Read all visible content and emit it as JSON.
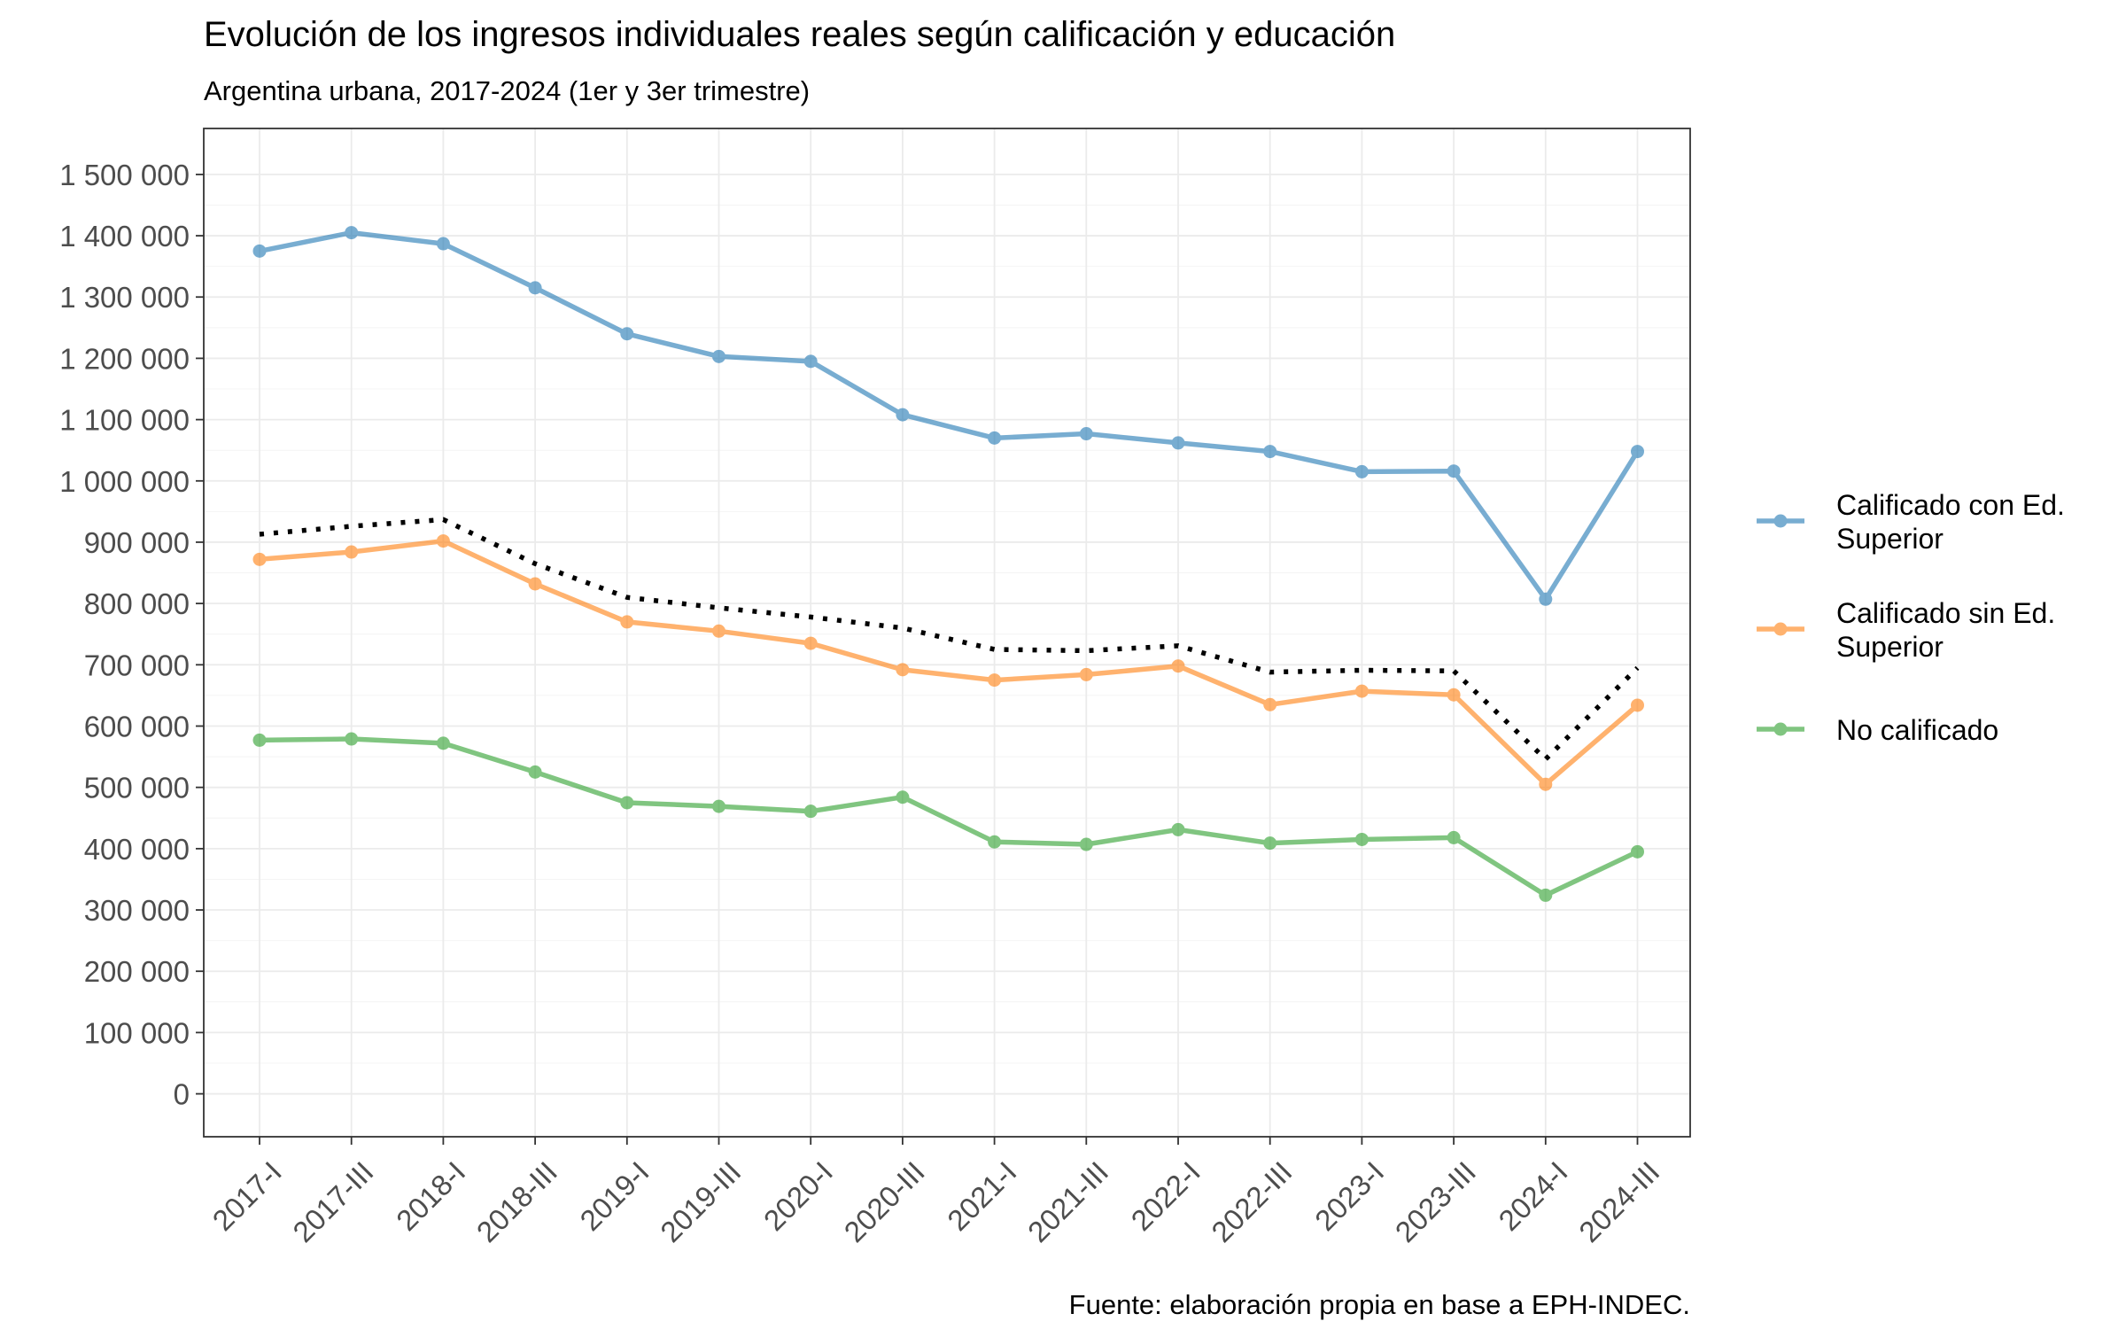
{
  "chart_data": {
    "type": "line",
    "title": "Evolución de los ingresos individuales reales según calificación y educación",
    "subtitle": "Argentina urbana, 2017-2024 (1er y 3er trimestre)",
    "caption": "Fuente: elaboración propia en base a EPH-INDEC.",
    "xlabel": "",
    "ylabel": "",
    "categories": [
      "2017-I",
      "2017-III",
      "2018-I",
      "2018-III",
      "2019-I",
      "2019-III",
      "2020-I",
      "2020-III",
      "2021-I",
      "2021-III",
      "2022-I",
      "2022-III",
      "2023-I",
      "2023-III",
      "2024-I",
      "2024-III"
    ],
    "y_ticks": [
      0,
      100000,
      200000,
      300000,
      400000,
      500000,
      600000,
      700000,
      800000,
      900000,
      1000000,
      1100000,
      1200000,
      1300000,
      1400000,
      1500000
    ],
    "y_tick_labels": [
      "0",
      "100 000",
      "200 000",
      "300 000",
      "400 000",
      "500 000",
      "600 000",
      "700 000",
      "800 000",
      "900 000",
      "1 000 000",
      "1 100 000",
      "1 200 000",
      "1 300 000",
      "1 400 000",
      "1 500 000"
    ],
    "ylim": [
      -70000,
      1575000
    ],
    "grid": true,
    "legend_position": "right",
    "series": [
      {
        "name": "Calificado con Ed. Superior",
        "legend_lines": [
          "Calificado con Ed.",
          "Superior"
        ],
        "color": "#1f77b4",
        "values": [
          1375000,
          1405000,
          1387000,
          1315000,
          1240000,
          1203000,
          1195000,
          1108000,
          1070000,
          1077000,
          1062000,
          1048000,
          1015000,
          1016000,
          807000,
          1048000
        ]
      },
      {
        "name": "Calificado sin Ed. Superior",
        "legend_lines": [
          "Calificado sin Ed.",
          "Superior"
        ],
        "color": "#ff7f0e",
        "values": [
          872000,
          884000,
          902000,
          832000,
          770000,
          755000,
          735000,
          692000,
          675000,
          684000,
          698000,
          635000,
          657000,
          651000,
          505000,
          634000
        ]
      },
      {
        "name": "No calificado",
        "legend_lines": [
          "No calificado"
        ],
        "color": "#2ca02c",
        "values": [
          577000,
          579000,
          572000,
          525000,
          475000,
          469000,
          461000,
          484000,
          411000,
          407000,
          431000,
          409000,
          415000,
          418000,
          324000,
          395000
        ]
      },
      {
        "name": "",
        "legend_lines": [],
        "color": "#000000",
        "style": "dotted",
        "values": [
          913000,
          926000,
          937000,
          865000,
          810000,
          793000,
          778000,
          760000,
          725000,
          723000,
          731000,
          688000,
          691000,
          690000,
          546000,
          695000
        ]
      }
    ]
  }
}
